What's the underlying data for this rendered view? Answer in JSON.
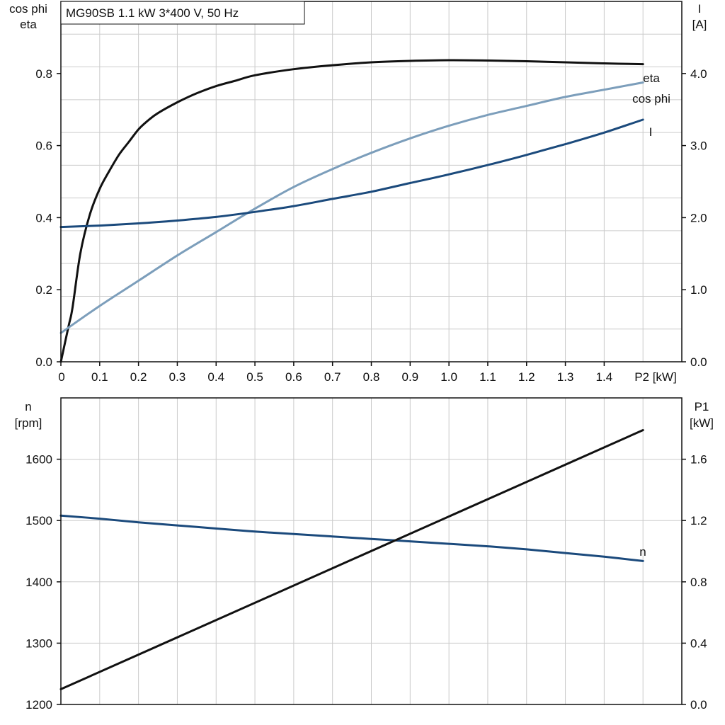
{
  "chart_data": [
    {
      "type": "line",
      "title": "MG90SB   1.1 kW   3*400 V, 50 Hz",
      "x_axis": {
        "label": "P2 [kW]",
        "range": [
          0,
          1.6
        ],
        "ticks": [
          0,
          0.1,
          0.2,
          0.3,
          0.4,
          0.5,
          0.6,
          0.7,
          0.8,
          0.9,
          1.0,
          1.1,
          1.2,
          1.3,
          1.4
        ],
        "tick_labels": [
          "0",
          "0.1",
          "0.2",
          "0.3",
          "0.4",
          "0.5",
          "0.6",
          "0.7",
          "0.8",
          "0.9",
          "1.0",
          "1.1",
          "1.2",
          "1.3",
          "1.4"
        ]
      },
      "left_axis": {
        "label_lines": [
          "cos phi",
          "eta"
        ],
        "range": [
          0,
          1.0
        ],
        "ticks": [
          0,
          0.2,
          0.4,
          0.6,
          0.8
        ],
        "tick_labels": [
          "0.0",
          "0.2",
          "0.4",
          "0.6",
          "0.8"
        ]
      },
      "right_axis": {
        "label_lines": [
          "I",
          "[A]"
        ],
        "range": [
          0,
          5.0
        ],
        "ticks": [
          0,
          1,
          2,
          3,
          4
        ],
        "tick_labels": [
          "0.0",
          "1.0",
          "2.0",
          "3.0",
          "4.0"
        ]
      },
      "grid": true,
      "series": [
        {
          "name": "eta",
          "axis": "left",
          "color": "#111111",
          "points": [
            [
              0,
              0
            ],
            [
              0.02,
              0.1
            ],
            [
              0.03,
              0.15
            ],
            [
              0.05,
              0.3
            ],
            [
              0.075,
              0.41
            ],
            [
              0.1,
              0.48
            ],
            [
              0.125,
              0.53
            ],
            [
              0.15,
              0.575
            ],
            [
              0.175,
              0.61
            ],
            [
              0.2,
              0.645
            ],
            [
              0.225,
              0.67
            ],
            [
              0.25,
              0.69
            ],
            [
              0.3,
              0.72
            ],
            [
              0.35,
              0.745
            ],
            [
              0.4,
              0.765
            ],
            [
              0.45,
              0.78
            ],
            [
              0.5,
              0.795
            ],
            [
              0.6,
              0.812
            ],
            [
              0.7,
              0.823
            ],
            [
              0.8,
              0.831
            ],
            [
              0.9,
              0.835
            ],
            [
              1.0,
              0.837
            ],
            [
              1.1,
              0.836
            ],
            [
              1.2,
              0.834
            ],
            [
              1.3,
              0.831
            ],
            [
              1.4,
              0.828
            ],
            [
              1.5,
              0.826
            ]
          ]
        },
        {
          "name": "cos phi",
          "axis": "left",
          "color": "#7c9ebb",
          "points": [
            [
              0,
              0.08
            ],
            [
              0.1,
              0.155
            ],
            [
              0.2,
              0.225
            ],
            [
              0.3,
              0.295
            ],
            [
              0.4,
              0.36
            ],
            [
              0.5,
              0.425
            ],
            [
              0.6,
              0.485
            ],
            [
              0.7,
              0.535
            ],
            [
              0.8,
              0.58
            ],
            [
              0.9,
              0.62
            ],
            [
              1.0,
              0.655
            ],
            [
              1.1,
              0.685
            ],
            [
              1.2,
              0.71
            ],
            [
              1.3,
              0.735
            ],
            [
              1.4,
              0.755
            ],
            [
              1.5,
              0.775
            ]
          ]
        },
        {
          "name": "I",
          "axis": "right",
          "color": "#1b4a7c",
          "points": [
            [
              0,
              1.87
            ],
            [
              0.1,
              1.89
            ],
            [
              0.2,
              1.92
            ],
            [
              0.3,
              1.96
            ],
            [
              0.4,
              2.01
            ],
            [
              0.5,
              2.08
            ],
            [
              0.6,
              2.16
            ],
            [
              0.7,
              2.26
            ],
            [
              0.8,
              2.36
            ],
            [
              0.9,
              2.48
            ],
            [
              1.0,
              2.6
            ],
            [
              1.1,
              2.73
            ],
            [
              1.2,
              2.87
            ],
            [
              1.3,
              3.02
            ],
            [
              1.4,
              3.18
            ],
            [
              1.5,
              3.36
            ]
          ]
        }
      ]
    },
    {
      "type": "line",
      "x_axis": {
        "range": [
          0,
          1.6
        ]
      },
      "left_axis": {
        "label_lines": [
          "n",
          "[rpm]"
        ],
        "range": [
          1200,
          1700
        ],
        "ticks": [
          1200,
          1300,
          1400,
          1500,
          1600
        ],
        "tick_labels": [
          "1200",
          "1300",
          "1400",
          "1500",
          "1600"
        ]
      },
      "right_axis": {
        "label_lines": [
          "P1",
          "[kW]"
        ],
        "range": [
          0,
          2.0
        ],
        "ticks": [
          0,
          0.4,
          0.8,
          1.2,
          1.6
        ],
        "tick_labels": [
          "0.0",
          "0.4",
          "0.8",
          "1.2",
          "1.6"
        ]
      },
      "grid": true,
      "series": [
        {
          "name": "n",
          "axis": "left",
          "color": "#1b4a7c",
          "points": [
            [
              0,
              1508
            ],
            [
              0.1,
              1503
            ],
            [
              0.2,
              1497
            ],
            [
              0.3,
              1492
            ],
            [
              0.4,
              1487
            ],
            [
              0.5,
              1482
            ],
            [
              0.6,
              1478
            ],
            [
              0.7,
              1474
            ],
            [
              0.8,
              1470
            ],
            [
              0.9,
              1466
            ],
            [
              1.0,
              1462
            ],
            [
              1.1,
              1458
            ],
            [
              1.2,
              1453
            ],
            [
              1.3,
              1447
            ],
            [
              1.4,
              1441
            ],
            [
              1.5,
              1434
            ]
          ]
        },
        {
          "axis": "right",
          "color": "#111111",
          "points": [
            [
              0,
              0.1
            ],
            [
              1.5,
              1.79
            ]
          ]
        }
      ]
    }
  ]
}
